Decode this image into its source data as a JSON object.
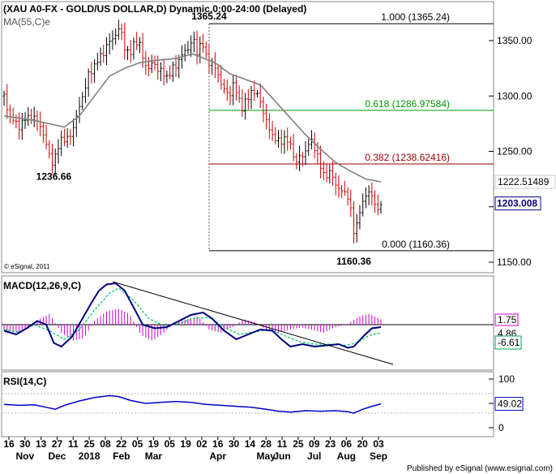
{
  "header": {
    "title": "(XAU A0-FX - GOLD/US DOLLAR,D) Dynamic,0:00-24:00 (Delayed)",
    "ma_label": "MA(55,C)e",
    "copyright": "© eSignal, 2011",
    "publisher": "Published by eSignal (www.esignal.com)"
  },
  "colors": {
    "up_candle": "#000000",
    "down_candle": "#cc0000",
    "ma": "#808080",
    "fib_green": "#009900",
    "fib_red": "#990000",
    "macd_line": "#000080",
    "macd_signal": "#00cc66",
    "macd_hist": "#cc00cc",
    "rsi": "#0000cc",
    "tag_current": "#000080",
    "tag_macd": "#cc00cc",
    "tag_signal": "#00aa55"
  },
  "chart_data": [
    {
      "type": "candlestick",
      "title": "(XAU A0-FX - GOLD/US DOLLAR,D) Dynamic,0:00-24:00 (Delayed)",
      "x_ticks": [
        "16",
        "30",
        "13",
        "27",
        "11",
        "25",
        "08",
        "22",
        "05",
        "19",
        "05",
        "19",
        "02",
        "16",
        "30",
        "14",
        "28",
        "11",
        "25",
        "09",
        "23",
        "06",
        "20",
        "03"
      ],
      "x_months": [
        {
          "label": "Nov",
          "at": "30"
        },
        {
          "label": "Dec",
          "at": "27"
        },
        {
          "label": "2018",
          "at": "25"
        },
        {
          "label": "Feb",
          "at": "22"
        },
        {
          "label": "Mar",
          "at": "19"
        },
        {
          "label": "Apr",
          "at": "16"
        },
        {
          "label": "May",
          "at": "28"
        },
        {
          "label": "Jun",
          "at": "11"
        },
        {
          "label": "Jul",
          "at": "09"
        },
        {
          "label": "Aug",
          "at": "06"
        },
        {
          "label": "Sep",
          "at": "03"
        }
      ],
      "y_ticks": [
        "1350.00",
        "1300.00",
        "1250.00",
        "1200.00",
        "1150.00"
      ],
      "y_tick_values": [
        1350,
        1300,
        1250,
        1200,
        1150
      ],
      "ylim": [
        1140,
        1375
      ],
      "close_points": [
        [
          0,
          1300
        ],
        [
          3,
          1283
        ],
        [
          6,
          1278
        ],
        [
          9,
          1272
        ],
        [
          12,
          1276
        ],
        [
          15,
          1280
        ],
        [
          18,
          1282
        ],
        [
          21,
          1278
        ],
        [
          24,
          1274
        ],
        [
          27,
          1260
        ],
        [
          30,
          1247
        ],
        [
          33,
          1238
        ],
        [
          35,
          1250
        ],
        [
          38,
          1262
        ],
        [
          42,
          1260
        ],
        [
          45,
          1268
        ],
        [
          49,
          1285
        ],
        [
          52,
          1300
        ],
        [
          56,
          1318
        ],
        [
          60,
          1328
        ],
        [
          64,
          1335
        ],
        [
          68,
          1345
        ],
        [
          72,
          1352
        ],
        [
          76,
          1360
        ],
        [
          78,
          1355
        ],
        [
          81,
          1340
        ],
        [
          84,
          1338
        ],
        [
          87,
          1352
        ],
        [
          90,
          1345
        ],
        [
          93,
          1330
        ],
        [
          96,
          1325
        ],
        [
          99,
          1330
        ],
        [
          102,
          1325
        ],
        [
          105,
          1320
        ],
        [
          108,
          1318
        ],
        [
          111,
          1322
        ],
        [
          114,
          1328
        ],
        [
          117,
          1335
        ],
        [
          120,
          1340
        ],
        [
          123,
          1345
        ],
        [
          125,
          1352
        ],
        [
          128,
          1340
        ],
        [
          131,
          1350
        ],
        [
          134,
          1335
        ],
        [
          137,
          1330
        ],
        [
          140,
          1325
        ],
        [
          143,
          1316
        ],
        [
          146,
          1305
        ],
        [
          149,
          1300
        ],
        [
          152,
          1310
        ],
        [
          155,
          1300
        ],
        [
          158,
          1290
        ],
        [
          161,
          1295
        ],
        [
          164,
          1305
        ],
        [
          167,
          1302
        ],
        [
          170,
          1296
        ],
        [
          174,
          1276
        ],
        [
          178,
          1265
        ],
        [
          182,
          1258
        ],
        [
          186,
          1262
        ],
        [
          190,
          1255
        ],
        [
          194,
          1240
        ],
        [
          197,
          1246
        ],
        [
          200,
          1250
        ],
        [
          203,
          1260
        ],
        [
          206,
          1255
        ],
        [
          210,
          1235
        ],
        [
          213,
          1228
        ],
        [
          216,
          1230
        ],
        [
          219,
          1225
        ],
        [
          222,
          1215
        ],
        [
          225,
          1214
        ],
        [
          228,
          1210
        ],
        [
          230,
          1195
        ],
        [
          232,
          1178
        ],
        [
          234,
          1185
        ],
        [
          236,
          1196
        ],
        [
          238,
          1202
        ],
        [
          240,
          1212
        ],
        [
          242,
          1214
        ],
        [
          244,
          1208
        ],
        [
          246,
          1203
        ],
        [
          248,
          1198
        ],
        [
          250,
          1203
        ]
      ],
      "ma_points": [
        [
          0,
          1282
        ],
        [
          20,
          1278
        ],
        [
          40,
          1272
        ],
        [
          50,
          1282
        ],
        [
          60,
          1300
        ],
        [
          70,
          1318
        ],
        [
          80,
          1325
        ],
        [
          90,
          1330
        ],
        [
          100,
          1332
        ],
        [
          115,
          1334
        ],
        [
          125,
          1338
        ],
        [
          140,
          1330
        ],
        [
          150,
          1320
        ],
        [
          160,
          1315
        ],
        [
          170,
          1310
        ],
        [
          180,
          1295
        ],
        [
          190,
          1280
        ],
        [
          200,
          1265
        ],
        [
          210,
          1252
        ],
        [
          220,
          1240
        ],
        [
          230,
          1232
        ],
        [
          240,
          1225
        ],
        [
          250,
          1222.5
        ]
      ],
      "last_index": 250,
      "ma_last_tag": "1222.51489",
      "current_price_tag": "1203.008",
      "fibonacci": [
        {
          "label": "1.000 (1365.24)",
          "value": 1365.24,
          "color": "#000000"
        },
        {
          "label": "0.618 (1286.97584)",
          "value": 1286.97584,
          "color": "#009900"
        },
        {
          "label": "0.382 (1238.62416)",
          "value": 1238.62416,
          "color": "#990000"
        },
        {
          "label": "0.000 (1160.36)",
          "value": 1160.36,
          "color": "#000000"
        }
      ],
      "annotations": [
        {
          "text": "1365.24",
          "x": 136,
          "y": 1365.24
        },
        {
          "text": "1236.66",
          "x": 33,
          "y": 1236.66
        },
        {
          "text": "1160.36",
          "x": 232,
          "y": 1160.36
        }
      ]
    },
    {
      "type": "line",
      "title": "MACD(12,26,9,C)",
      "tags": [
        "1.75",
        "4.86",
        "-6.61"
      ],
      "macd_points": [
        [
          0,
          -5
        ],
        [
          8,
          -8
        ],
        [
          15,
          -3
        ],
        [
          22,
          3
        ],
        [
          28,
          0
        ],
        [
          33,
          -15
        ],
        [
          38,
          -18
        ],
        [
          45,
          -10
        ],
        [
          52,
          5
        ],
        [
          58,
          18
        ],
        [
          63,
          28
        ],
        [
          68,
          33
        ],
        [
          74,
          34
        ],
        [
          80,
          28
        ],
        [
          86,
          14
        ],
        [
          92,
          0
        ],
        [
          100,
          -3
        ],
        [
          108,
          -2
        ],
        [
          116,
          3
        ],
        [
          124,
          8
        ],
        [
          132,
          10
        ],
        [
          138,
          5
        ],
        [
          146,
          -5
        ],
        [
          154,
          -12
        ],
        [
          162,
          -8
        ],
        [
          170,
          -4
        ],
        [
          178,
          -5
        ],
        [
          184,
          -12
        ],
        [
          190,
          -18
        ],
        [
          198,
          -16
        ],
        [
          206,
          -18
        ],
        [
          214,
          -17
        ],
        [
          222,
          -16
        ],
        [
          228,
          -19
        ],
        [
          232,
          -18
        ],
        [
          238,
          -10
        ],
        [
          244,
          -3
        ],
        [
          250,
          -2
        ]
      ],
      "signal_points": [
        [
          0,
          -4
        ],
        [
          10,
          -6
        ],
        [
          20,
          0
        ],
        [
          30,
          -5
        ],
        [
          40,
          -12
        ],
        [
          50,
          -4
        ],
        [
          60,
          12
        ],
        [
          70,
          26
        ],
        [
          76,
          30
        ],
        [
          86,
          20
        ],
        [
          96,
          5
        ],
        [
          106,
          -1
        ],
        [
          116,
          1
        ],
        [
          126,
          5
        ],
        [
          136,
          6
        ],
        [
          146,
          -2
        ],
        [
          156,
          -8
        ],
        [
          166,
          -6
        ],
        [
          176,
          -4
        ],
        [
          186,
          -9
        ],
        [
          196,
          -14
        ],
        [
          206,
          -16
        ],
        [
          216,
          -16
        ],
        [
          226,
          -17
        ],
        [
          234,
          -15
        ],
        [
          242,
          -9
        ],
        [
          250,
          -6.61
        ]
      ],
      "hist_values": [
        -2,
        -3,
        -2,
        2,
        4,
        -3,
        -6,
        -5,
        2,
        5,
        6,
        4,
        -4,
        -6,
        -3,
        1,
        2,
        3,
        -2,
        -3,
        -1,
        2,
        1,
        -2,
        -3,
        -2,
        -1,
        -2,
        -3,
        -1,
        0,
        3,
        4,
        2
      ],
      "trendline": {
        "x0": 74,
        "y0": 34,
        "x1": 250,
        "y1": -20
      }
    },
    {
      "type": "line",
      "title": "RSI(14,C)",
      "y_ticks": [
        "100",
        "50",
        "0"
      ],
      "y_tick_values": [
        100,
        50,
        0
      ],
      "tag": "49.02",
      "rsi_points": [
        [
          0,
          48
        ],
        [
          10,
          46
        ],
        [
          20,
          47
        ],
        [
          28,
          42
        ],
        [
          34,
          38
        ],
        [
          40,
          46
        ],
        [
          50,
          55
        ],
        [
          60,
          62
        ],
        [
          70,
          66
        ],
        [
          76,
          64
        ],
        [
          84,
          56
        ],
        [
          94,
          50
        ],
        [
          104,
          52
        ],
        [
          114,
          54
        ],
        [
          124,
          52
        ],
        [
          134,
          48
        ],
        [
          144,
          46
        ],
        [
          154,
          44
        ],
        [
          164,
          42
        ],
        [
          174,
          38
        ],
        [
          182,
          34
        ],
        [
          190,
          32
        ],
        [
          200,
          35
        ],
        [
          210,
          34
        ],
        [
          220,
          35
        ],
        [
          228,
          33
        ],
        [
          232,
          30
        ],
        [
          238,
          38
        ],
        [
          244,
          44
        ],
        [
          250,
          49
        ]
      ]
    }
  ]
}
